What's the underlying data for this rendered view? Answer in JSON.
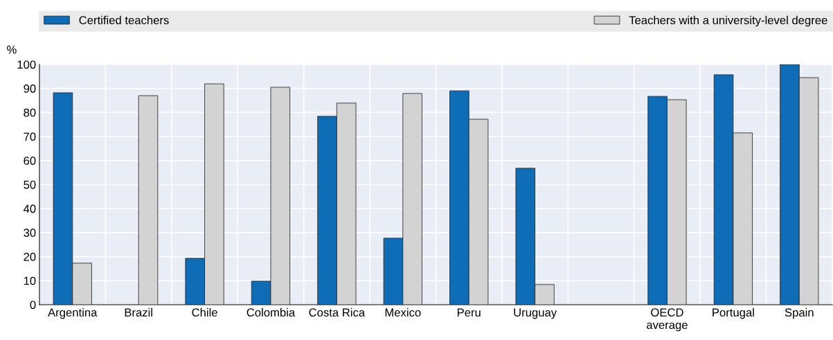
{
  "chart_data": {
    "type": "bar",
    "ylabel": "%",
    "categories": [
      "Argentina",
      "Brazil",
      "Chile",
      "Colombia",
      "Costa Rica",
      "Mexico",
      "Peru",
      "Uruguay",
      null,
      "OECD\naverage",
      "Portugal",
      "Spain"
    ],
    "series": [
      {
        "name": "Certified teachers",
        "color": "#0f6db8",
        "values": [
          88.2,
          null,
          19.3,
          9.8,
          78.4,
          27.7,
          89.0,
          56.8,
          null,
          86.7,
          95.7,
          100
        ]
      },
      {
        "name": "Teachers with a university-level degree",
        "color": "#d3d3d3",
        "values": [
          17.3,
          87.0,
          91.9,
          90.5,
          83.9,
          87.9,
          77.2,
          8.4,
          null,
          85.3,
          71.5,
          94.5
        ]
      }
    ],
    "ylim": [
      0,
      100
    ],
    "yticks": [
      0,
      10,
      20,
      30,
      40,
      50,
      60,
      70,
      80,
      90,
      100
    ],
    "grid": true,
    "legend": "top"
  }
}
